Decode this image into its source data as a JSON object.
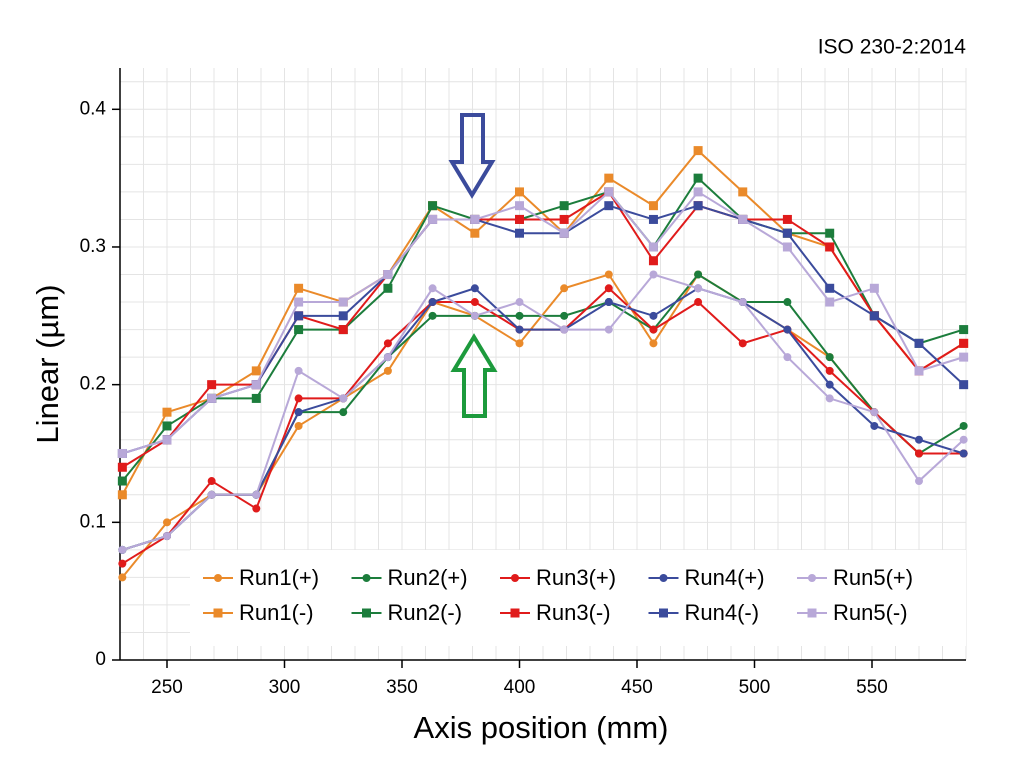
{
  "chart_data": {
    "type": "line",
    "annotation": "ISO 230-2:2014",
    "x_label": "Axis position (mm)",
    "y_label": "Linear (µm)",
    "x": [
      231,
      250,
      269,
      288,
      306,
      325,
      344,
      363,
      381,
      400,
      419,
      438,
      457,
      476,
      495,
      514,
      532,
      551,
      570,
      589
    ],
    "xlim": [
      230,
      590
    ],
    "xticks": [
      250,
      300,
      350,
      400,
      450,
      500,
      550
    ],
    "ylim": [
      0,
      0.43
    ],
    "yticks": [
      0,
      0.1,
      0.2,
      0.3,
      0.4
    ],
    "grid": true,
    "series": [
      {
        "name": "Run1(+)",
        "color": "#ea8a2a",
        "marker": "circle",
        "values": [
          0.06,
          0.1,
          0.12,
          0.12,
          0.17,
          0.19,
          0.21,
          0.26,
          0.25,
          0.23,
          0.27,
          0.28,
          0.23,
          0.28,
          0.26,
          0.24,
          0.22,
          0.18,
          0.15,
          0.15
        ]
      },
      {
        "name": "Run2(+)",
        "color": "#1c7d3c",
        "marker": "circle",
        "values": [
          0.08,
          0.09,
          0.12,
          0.12,
          0.18,
          0.18,
          0.22,
          0.25,
          0.25,
          0.25,
          0.25,
          0.26,
          0.24,
          0.28,
          0.26,
          0.26,
          0.22,
          0.18,
          0.15,
          0.17
        ]
      },
      {
        "name": "Run3(+)",
        "color": "#e01b1b",
        "marker": "circle",
        "values": [
          0.07,
          0.09,
          0.13,
          0.11,
          0.19,
          0.19,
          0.23,
          0.26,
          0.26,
          0.24,
          0.24,
          0.27,
          0.24,
          0.26,
          0.23,
          0.24,
          0.21,
          0.18,
          0.15,
          0.15
        ]
      },
      {
        "name": "Run4(+)",
        "color": "#3b4b9c",
        "marker": "circle",
        "values": [
          0.08,
          0.09,
          0.12,
          0.12,
          0.18,
          0.19,
          0.22,
          0.26,
          0.27,
          0.24,
          0.24,
          0.26,
          0.25,
          0.27,
          0.26,
          0.24,
          0.2,
          0.17,
          0.16,
          0.15
        ]
      },
      {
        "name": "Run5(+)",
        "color": "#b8a8d8",
        "marker": "circle",
        "values": [
          0.08,
          0.09,
          0.12,
          0.12,
          0.21,
          0.19,
          0.22,
          0.27,
          0.25,
          0.26,
          0.24,
          0.24,
          0.28,
          0.27,
          0.26,
          0.22,
          0.19,
          0.18,
          0.13,
          0.16
        ]
      },
      {
        "name": "Run1(-)",
        "color": "#ea8a2a",
        "marker": "square",
        "values": [
          0.12,
          0.18,
          0.19,
          0.21,
          0.27,
          0.26,
          0.28,
          0.33,
          0.31,
          0.34,
          0.31,
          0.35,
          0.33,
          0.37,
          0.34,
          0.31,
          0.3,
          0.25,
          0.21,
          0.23
        ]
      },
      {
        "name": "Run2(-)",
        "color": "#1c7d3c",
        "marker": "square",
        "values": [
          0.13,
          0.17,
          0.19,
          0.19,
          0.24,
          0.24,
          0.27,
          0.33,
          0.32,
          0.32,
          0.33,
          0.34,
          0.3,
          0.35,
          0.32,
          0.31,
          0.31,
          0.25,
          0.23,
          0.24
        ]
      },
      {
        "name": "Run3(-)",
        "color": "#e01b1b",
        "marker": "square",
        "values": [
          0.14,
          0.16,
          0.2,
          0.2,
          0.25,
          0.24,
          0.28,
          0.32,
          0.32,
          0.32,
          0.32,
          0.34,
          0.29,
          0.33,
          0.32,
          0.32,
          0.3,
          0.25,
          0.21,
          0.23
        ]
      },
      {
        "name": "Run4(-)",
        "color": "#3b4b9c",
        "marker": "square",
        "values": [
          0.15,
          0.16,
          0.19,
          0.2,
          0.25,
          0.25,
          0.28,
          0.32,
          0.32,
          0.31,
          0.31,
          0.33,
          0.32,
          0.33,
          0.32,
          0.31,
          0.27,
          0.25,
          0.23,
          0.2
        ]
      },
      {
        "name": "Run5(-)",
        "color": "#b8a8d8",
        "marker": "square",
        "values": [
          0.15,
          0.16,
          0.19,
          0.2,
          0.26,
          0.26,
          0.28,
          0.32,
          0.32,
          0.33,
          0.31,
          0.34,
          0.3,
          0.34,
          0.32,
          0.3,
          0.26,
          0.27,
          0.21,
          0.22
        ]
      }
    ]
  }
}
